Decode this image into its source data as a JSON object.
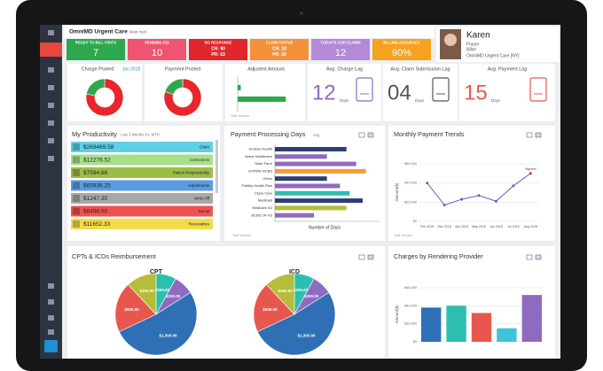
{
  "header": {
    "org": "OmniMD Urgent Care",
    "location": "New York"
  },
  "tiles": [
    {
      "label": "READY TO BILL VISITS",
      "value": 7,
      "color": "#2ea84e"
    },
    {
      "label": "PENDING CDI",
      "value": 10,
      "color": "#ef5470"
    },
    {
      "label": "NO RESPONSE",
      "lines": [
        "CH: 90",
        "PR: 63"
      ],
      "color": "#e0262b"
    },
    {
      "label": "CLAIM STATUS",
      "lines": [
        "CH: 18",
        "PR: 20"
      ],
      "color": "#f2913a"
    },
    {
      "label": "TODAY'S COP CLAIMS",
      "value": 12,
      "color": "#b48ad8"
    },
    {
      "label": "BILLING ACCURACY",
      "value": "90%",
      "color": "#f5a21f"
    }
  ],
  "profile": {
    "name": "Karen",
    "surname": "Fraser",
    "role": "Biller",
    "org": "OmniMD Urgent Care [NY]"
  },
  "charge_posted": {
    "title": "Charge Posted",
    "period": "Jan 2018",
    "values": [
      78,
      22
    ],
    "colors": [
      "#e8262b",
      "#2ea84e"
    ]
  },
  "payment_posted": {
    "title": "Payment Posted",
    "values": [
      80,
      20
    ],
    "colors": [
      "#e8262b",
      "#2ea84e"
    ]
  },
  "adjusted_amount": {
    "title": "Adjusted Amount",
    "values": [
      4,
      62
    ],
    "xlim": [
      0,
      80
    ],
    "color": "#2ea84e",
    "note": "Trial Version"
  },
  "kpis": [
    {
      "title": "Avg. Charge Lag",
      "value": "12",
      "unit": "Days",
      "color": "#8e6bbf"
    },
    {
      "title": "Avg. Claim Submission Lag",
      "value": "04",
      "unit": "Days",
      "color": "#555555"
    },
    {
      "title": "Avg. Payment Lag",
      "value": "15",
      "unit": "Days",
      "color": "#e8574e"
    }
  ],
  "productivity": {
    "title": "My Productivity",
    "subtitle": "Last 3 Months Ex. MTD",
    "items": [
      {
        "amount": "$269469.58",
        "label": "Claim",
        "color": "#5fd0e6"
      },
      {
        "amount": "$12276.52",
        "label": "Corrections",
        "color": "#a8e08a"
      },
      {
        "amount": "$7594.68",
        "label": "Patient Responsibility",
        "color": "#9cbd45"
      },
      {
        "amount": "$65936.25",
        "label": "Adjustments",
        "color": "#5a9be0"
      },
      {
        "amount": "$1247.35",
        "label": "Write Off",
        "color": "#a8a8a8"
      },
      {
        "amount": "$6496.00",
        "label": "Denial",
        "color": "#f0524f"
      },
      {
        "amount": "$11652.33",
        "label": "Receivables",
        "color": "#f3dc4a"
      }
    ]
  },
  "payment_days": {
    "title": "Payment Processing Days",
    "subtitle": "Avg",
    "xlabel": "Number of Days",
    "note": "Trial Version",
    "xlim": [
      0,
      30
    ],
    "categories": [
      "Hudson Health",
      "Aetna Healthcare",
      "State Farm",
      "EXPIRE BCBS",
      "Geico",
      "Fidelity Health Plan",
      "Cigna Care",
      "Medicaid",
      "Medicare NJ",
      "BCBS OF NJ"
    ],
    "values": [
      22,
      16,
      25,
      28,
      16,
      20,
      23,
      27,
      22,
      12
    ],
    "colors": [
      "#2c3e73",
      "#8e6bbf",
      "#8e6bbf",
      "#f39c35",
      "#2c3e73",
      "#8e6bbf",
      "#2bbfb0",
      "#2c3e73",
      "#b5bd3a",
      "#8e6bbf"
    ]
  },
  "monthly_trends": {
    "title": "Monthly Payment Trends",
    "ylabel": "Amount($)",
    "annotation": "Highest",
    "note": "Trial Version",
    "categories": [
      "Feb 2018",
      "Mar 2018",
      "Apr 2018",
      "May 2018",
      "Jun 2018",
      "Jul 2018",
      "Aug 2018"
    ],
    "values": [
      40000,
      17000,
      23000,
      27000,
      21000,
      37000,
      50000
    ],
    "color": "#6b5fb5",
    "ylim": [
      0,
      60000
    ],
    "yticks": [
      {
        "value": 0,
        "label": "$0"
      },
      {
        "value": 20000,
        "label": "$20,000"
      },
      {
        "value": 40000,
        "label": "$40,000"
      },
      {
        "value": 60000,
        "label": "$60,000"
      }
    ]
  },
  "reimbursement": {
    "title": "CPTs & ICDs Reimbursement",
    "pies": [
      {
        "title": "CPT",
        "values": [
          200,
          200,
          1300,
          500,
          300
        ],
        "value_labels": [
          "$200.00",
          "$200.00",
          "$1,300.00",
          "$500.00",
          "$300.00"
        ]
      },
      {
        "title": "ICD",
        "values": [
          200,
          200,
          1300,
          500,
          300
        ],
        "value_labels": [
          "$200.00",
          "$200.00",
          "$1,300.00",
          "$500.00",
          "$300.00"
        ]
      }
    ],
    "colors": [
      "#2bbfb0",
      "#8e6bbf",
      "#2f6fb5",
      "#e8574e",
      "#b5bd3a"
    ]
  },
  "provider_charges": {
    "title": "Charges by Rendering Provider",
    "ylabel": "Amount($)",
    "values": [
      38000,
      40000,
      32000,
      15000,
      52000
    ],
    "colors": [
      "#2f6fb5",
      "#2bbfb0",
      "#e8574e",
      "#3ec3d8",
      "#8e6bbf"
    ],
    "ylim": [
      0,
      60000
    ],
    "yticks": [
      {
        "value": 0,
        "label": "$0"
      },
      {
        "value": 20000,
        "label": "$20,000"
      },
      {
        "value": 40000,
        "label": "$40,000"
      },
      {
        "value": 60000,
        "label": "$60,000"
      }
    ]
  }
}
